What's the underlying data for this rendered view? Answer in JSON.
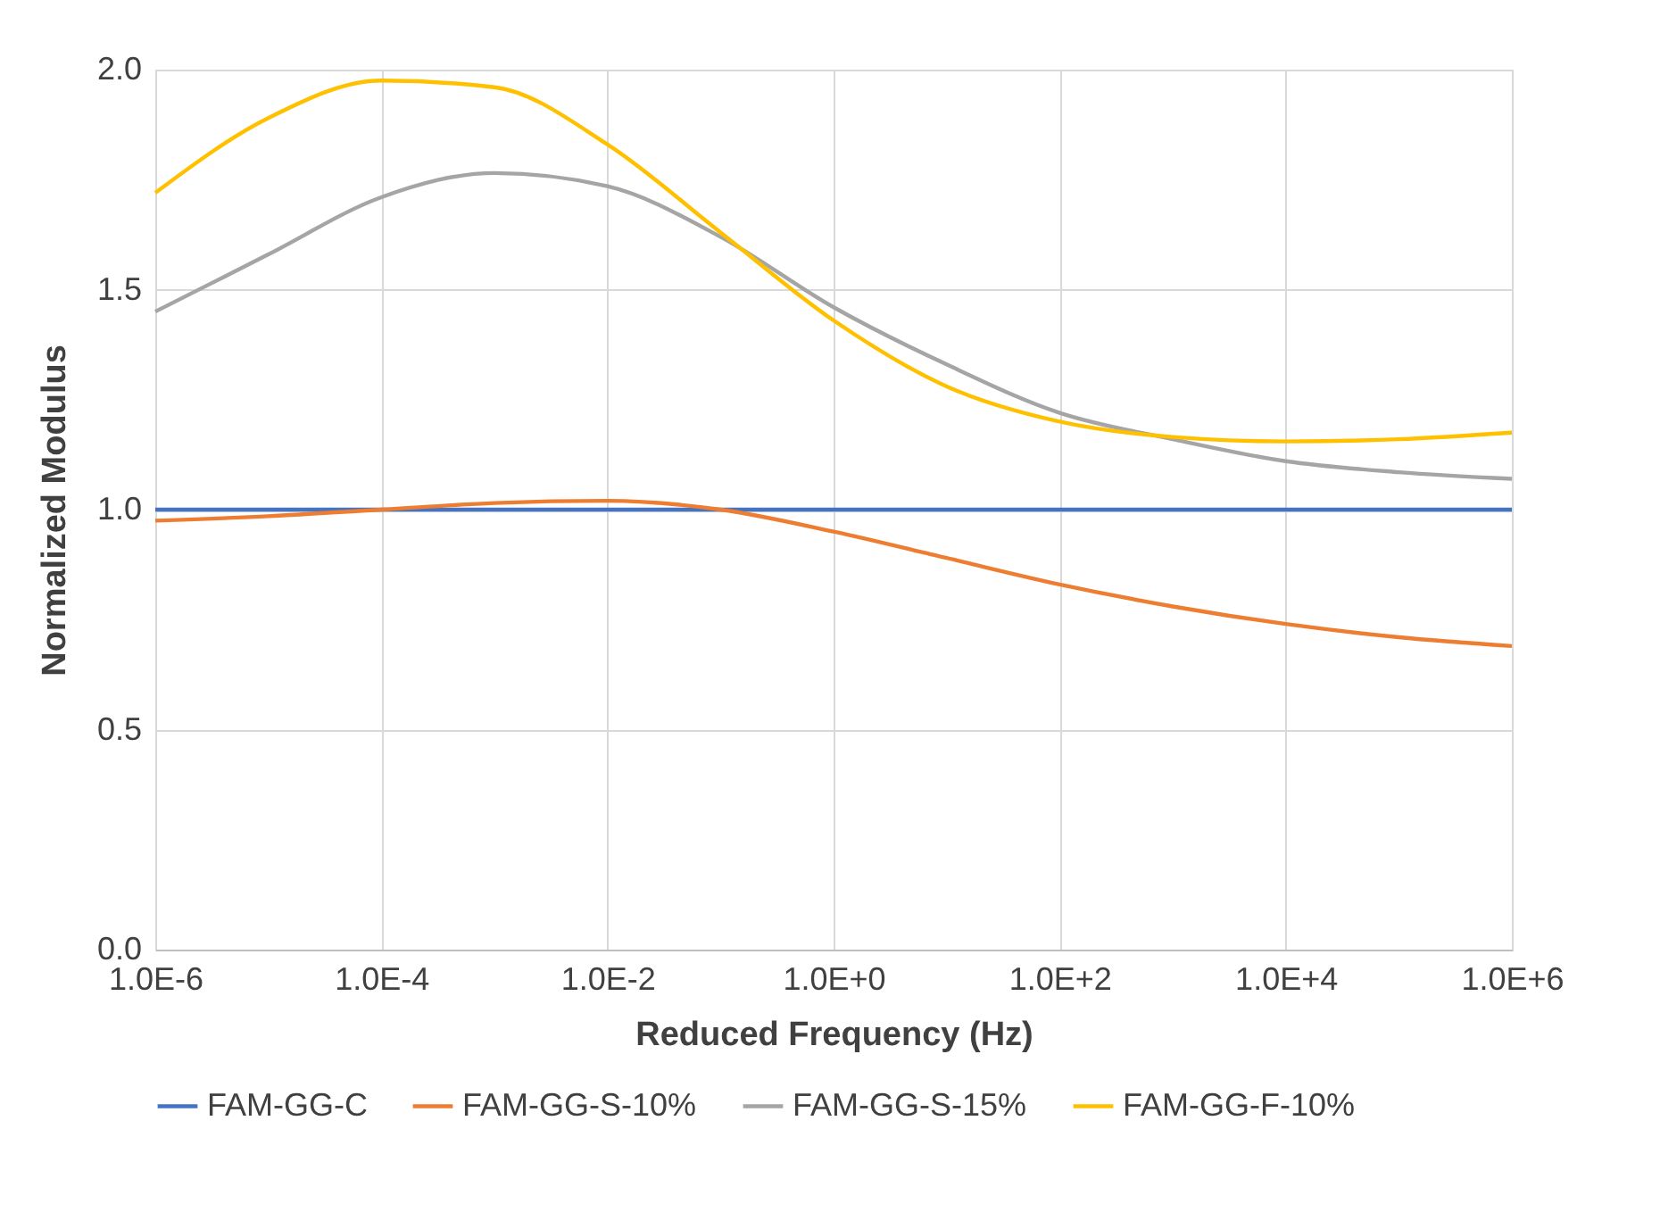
{
  "chart_data": {
    "type": "line",
    "xlabel": "Reduced Frequency (Hz)",
    "ylabel": "Normalized Modulus",
    "log": "x",
    "grid": true,
    "legend": "bottom",
    "line_style": "solid",
    "marker": "none",
    "x": [
      1e-06,
      1e-05,
      0.0001,
      0.001,
      0.01,
      0.1,
      1.0,
      10.0,
      100.0,
      1000.0,
      10000.0,
      100000.0,
      1000000.0
    ],
    "xlim": [
      1e-06,
      1000000.0
    ],
    "xticks": [
      {
        "value": 1e-06,
        "label": "1.0E-6"
      },
      {
        "value": 0.0001,
        "label": "1.0E-4"
      },
      {
        "value": 0.01,
        "label": "1.0E-2"
      },
      {
        "value": 1,
        "label": "1.0E+0"
      },
      {
        "value": 100,
        "label": "1.0E+2"
      },
      {
        "value": 10000,
        "label": "1.0E+4"
      },
      {
        "value": 1000000,
        "label": "1.0E+6"
      }
    ],
    "ylim": [
      0,
      2
    ],
    "yticks": [
      {
        "value": 0,
        "label": "0.0"
      },
      {
        "value": 0.5,
        "label": "0.5"
      },
      {
        "value": 1,
        "label": "1.0"
      },
      {
        "value": 1.5,
        "label": "1.5"
      },
      {
        "value": 2,
        "label": "2.0"
      }
    ],
    "series": [
      {
        "name": "FAM-GG-C",
        "color": "#4472c4",
        "values": [
          1.0,
          1.0,
          1.0,
          1.0,
          1.0,
          1.0,
          1.0,
          1.0,
          1.0,
          1.0,
          1.0,
          1.0,
          1.0
        ]
      },
      {
        "name": "FAM-GG-S-10%",
        "color": "#ed7d31",
        "values": [
          0.975,
          0.985,
          1.0,
          1.015,
          1.02,
          1.0,
          0.95,
          0.89,
          0.83,
          0.78,
          0.74,
          0.71,
          0.69
        ]
      },
      {
        "name": "FAM-GG-S-15%",
        "color": "#a5a5a5",
        "values": [
          1.45,
          1.58,
          1.71,
          1.765,
          1.735,
          1.62,
          1.46,
          1.33,
          1.22,
          1.16,
          1.11,
          1.085,
          1.07
        ]
      },
      {
        "name": "FAM-GG-F-10%",
        "color": "#ffc000",
        "values": [
          1.72,
          1.89,
          1.975,
          1.96,
          1.83,
          1.63,
          1.43,
          1.28,
          1.2,
          1.165,
          1.155,
          1.16,
          1.175
        ]
      }
    ]
  }
}
